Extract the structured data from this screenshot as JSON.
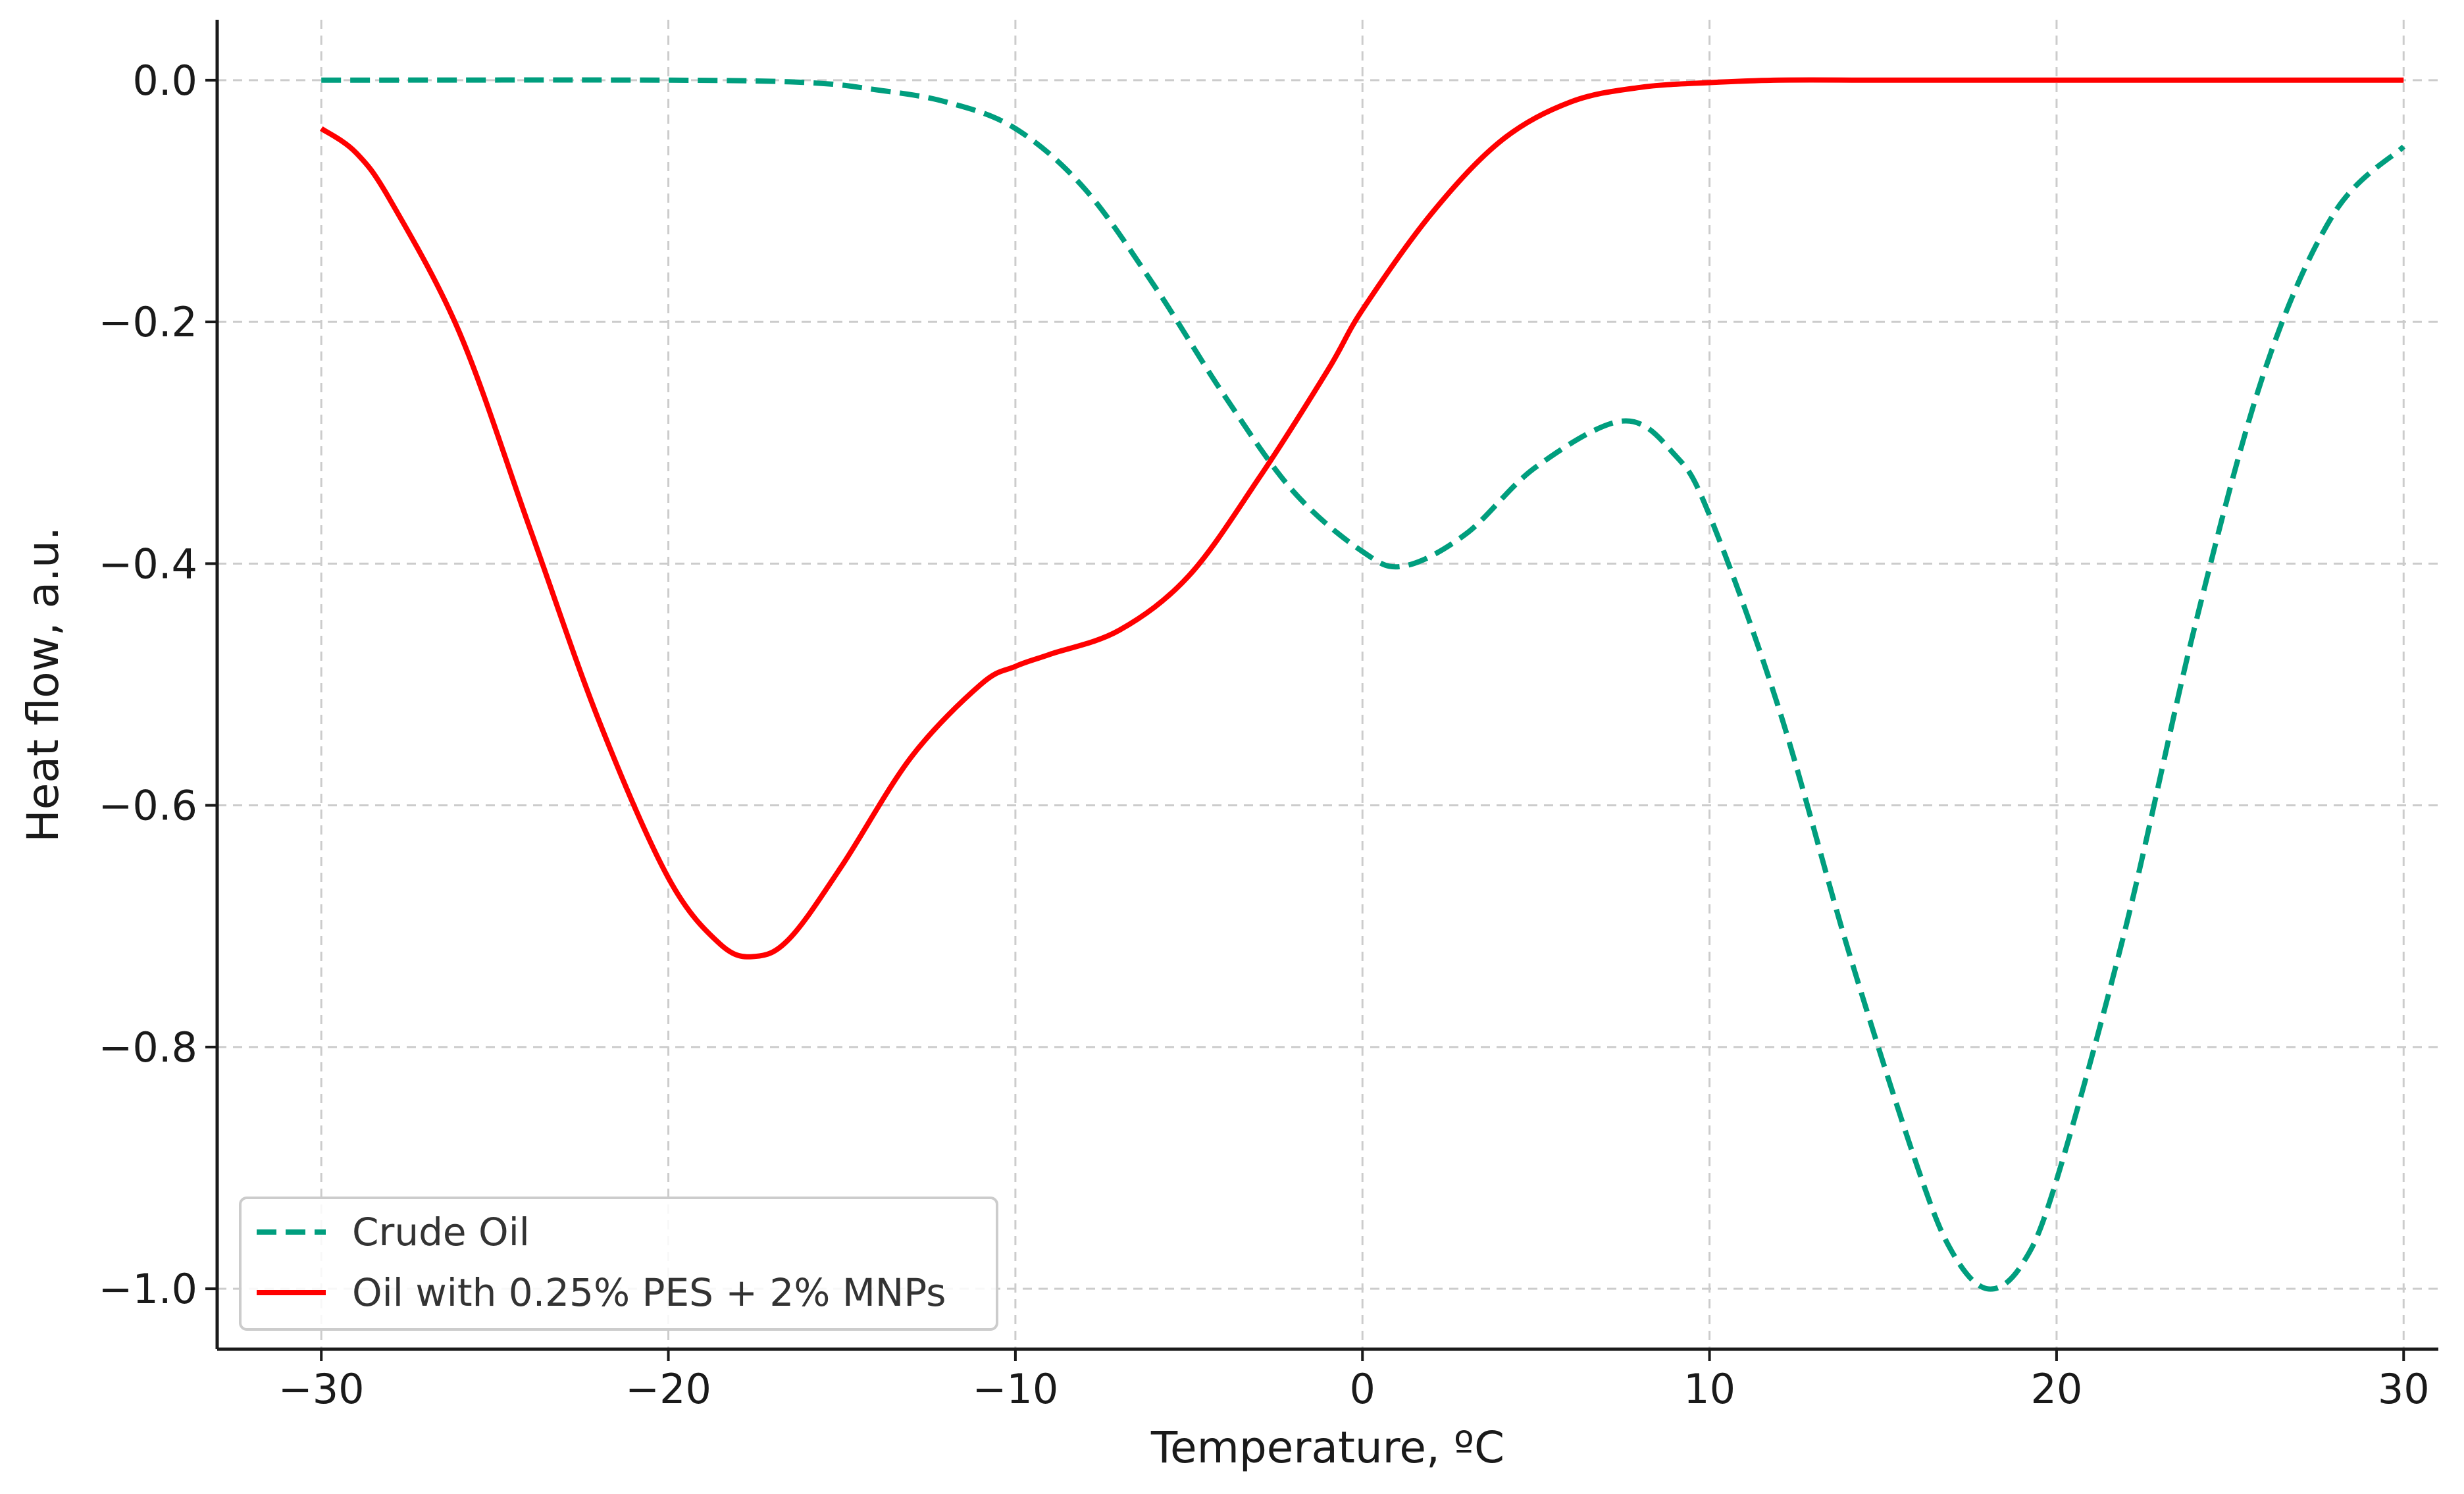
{
  "chart_data": {
    "type": "line",
    "title": "",
    "xlabel": "Temperature, ºC",
    "ylabel": "Heat flow, a.u.",
    "xlim": [
      -33,
      31
    ],
    "ylim": [
      -1.05,
      0.05
    ],
    "xticks": [
      -30,
      -20,
      -10,
      0,
      10,
      20,
      30
    ],
    "yticks": [
      0.0,
      -0.2,
      -0.4,
      -0.6,
      -0.8,
      -1.0
    ],
    "xtick_labels": [
      "−30",
      "−20",
      "−10",
      "0",
      "10",
      "20",
      "30"
    ],
    "ytick_labels": [
      "0.0",
      "−0.2",
      "−0.4",
      "−0.6",
      "−0.8",
      "−1.0"
    ],
    "grid": true,
    "legend_position": "bottom-left",
    "series": [
      {
        "name": "Crude Oil",
        "color": "#009e7e",
        "style": "dashed",
        "x": [
          -30,
          -20,
          -16,
          -14,
          -12,
          -10,
          -8,
          -6,
          -4,
          -2,
          0,
          1.2,
          3,
          5,
          7.5,
          9,
          10,
          12,
          14,
          16,
          17,
          18,
          19,
          20,
          22,
          24,
          26,
          28,
          30
        ],
        "y": [
          0.0,
          0.0,
          -0.002,
          -0.008,
          -0.018,
          -0.04,
          -0.09,
          -0.17,
          -0.26,
          -0.34,
          -0.39,
          -0.402,
          -0.375,
          -0.32,
          -0.282,
          -0.31,
          -0.36,
          -0.52,
          -0.72,
          -0.9,
          -0.97,
          -1.0,
          -0.98,
          -0.91,
          -0.7,
          -0.45,
          -0.24,
          -0.11,
          -0.055
        ]
      },
      {
        "name": "Oil with 0.25% PES + 2% MNPs",
        "color": "#ff0000",
        "style": "solid",
        "x": [
          -30,
          -29,
          -28,
          -26,
          -24,
          -22,
          -20,
          -18.5,
          -17.5,
          -16.5,
          -15,
          -13,
          -11,
          -10,
          -9,
          -7,
          -5,
          -3,
          -1,
          0,
          2,
          4,
          6,
          8,
          10,
          12,
          15,
          20,
          30
        ],
        "y": [
          -0.04,
          -0.06,
          -0.1,
          -0.21,
          -0.37,
          -0.53,
          -0.66,
          -0.715,
          -0.725,
          -0.71,
          -0.65,
          -0.56,
          -0.5,
          -0.485,
          -0.475,
          -0.455,
          -0.41,
          -0.33,
          -0.24,
          -0.19,
          -0.11,
          -0.05,
          -0.018,
          -0.006,
          -0.002,
          0.0,
          0.0,
          0.0,
          0.0
        ]
      }
    ]
  }
}
